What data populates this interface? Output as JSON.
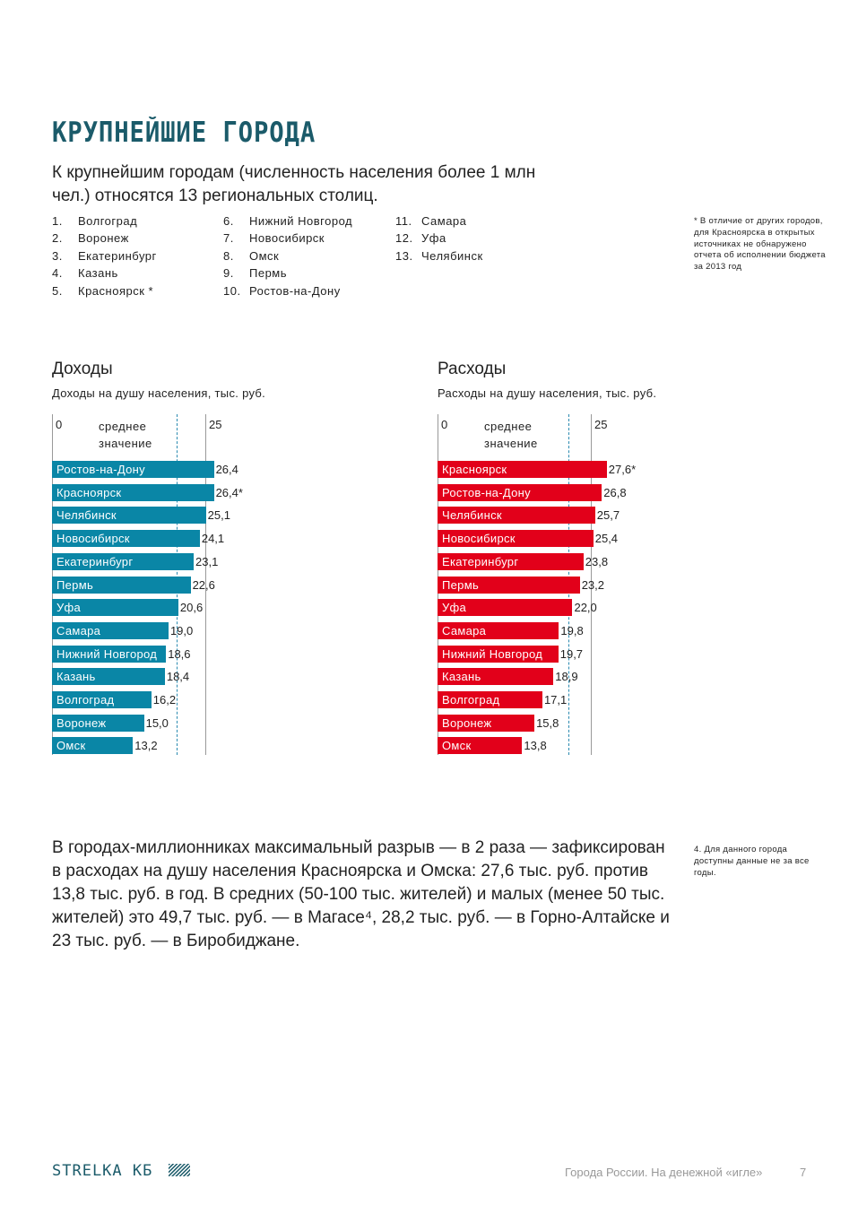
{
  "title": "КРУПНЕЙШИЕ ГОРОДА",
  "intro": "К крупнейшим городам (численность населения более 1 млн чел.) относятся 13 региональных столиц.",
  "cities": [
    {
      "n": "1.",
      "name": "Волгоград"
    },
    {
      "n": "2.",
      "name": "Воронеж"
    },
    {
      "n": "3.",
      "name": "Екатеринбург"
    },
    {
      "n": "4.",
      "name": "Казань"
    },
    {
      "n": "5.",
      "name": "Красноярск *"
    },
    {
      "n": "6.",
      "name": "Нижний  Новгород"
    },
    {
      "n": "7.",
      "name": "Новосибирск"
    },
    {
      "n": "8.",
      "name": "Омск"
    },
    {
      "n": "9.",
      "name": "Пермь"
    },
    {
      "n": "10.",
      "name": "Ростов-на-Дону"
    },
    {
      "n": "11.",
      "name": "Самара"
    },
    {
      "n": "12.",
      "name": "Уфа"
    },
    {
      "n": "13.",
      "name": "Челябинск"
    }
  ],
  "note_star": "*     В отличие от других городов, для Красноярска в открытых источниках не обнаружено отчета об исполнении бюджета за 2013 год",
  "note_4": "4.     Для данного города доступны данные не за все годы.",
  "paragraph": "В городах-миллионниках максимальный разрыв — в 2 раза — зафиксирован в расходах на душу населения Красноярска и Омска: 27,6 тыс. руб. против 13,8 тыс. руб. в год. В средних (50-100 тыс. жителей) и малых (менее 50 тыс. жителей) это 49,7 тыс. руб. — в Магасе⁴, 28,2 тыс. руб. — в Горно-Алтайске и 23 тыс. руб. — в Биробиджане.",
  "footer": {
    "logo": "STRELKA КБ",
    "text": "Города России. На денежной «игле»",
    "page": "7"
  },
  "chart_data": [
    {
      "type": "bar",
      "orientation": "horizontal",
      "title": "Доходы",
      "subtitle": "Доходы на душу населения, тыс. руб.",
      "tick_labels": [
        "0",
        "25"
      ],
      "avg_label": "среднее значение",
      "avg_value": 20.3,
      "xlim": [
        0,
        28
      ],
      "color": "#0a86a6",
      "categories": [
        "Ростов-на-Дону",
        "Красноярск",
        "Челябинск",
        "Новосибирск",
        "Екатеринбург",
        "Пермь",
        "Уфа",
        "Самара",
        "Нижний Новгород",
        "Казань",
        "Волгоград",
        "Воронеж",
        "Омск"
      ],
      "values": [
        26.4,
        26.4,
        25.1,
        24.1,
        23.1,
        22.6,
        20.6,
        19.0,
        18.6,
        18.4,
        16.2,
        15.0,
        13.2
      ],
      "labels": [
        "26,4",
        "26,4*",
        "25,1",
        "24,1",
        "23,1",
        "22,6",
        "20,6",
        "19,0",
        "18,6",
        "18,4",
        "16,2",
        "15,0",
        "13,2"
      ]
    },
    {
      "type": "bar",
      "orientation": "horizontal",
      "title": "Расходы",
      "subtitle": "Расходы на душу населения, тыс. руб.",
      "tick_labels": [
        "0",
        "25"
      ],
      "avg_label": "среднее значение",
      "avg_value": 21.3,
      "xlim": [
        0,
        28
      ],
      "color": "#e2001a",
      "categories": [
        "Красноярск",
        "Ростов-на-Дону",
        "Челябинск",
        "Новосибирск",
        "Екатеринбург",
        "Пермь",
        "Уфа",
        "Самара",
        "Нижний Новгород",
        "Казань",
        "Волгоград",
        "Воронеж",
        "Омск"
      ],
      "values": [
        27.6,
        26.8,
        25.7,
        25.4,
        23.8,
        23.2,
        22.0,
        19.8,
        19.7,
        18.9,
        17.1,
        15.8,
        13.8
      ],
      "labels": [
        "27,6*",
        "26,8",
        "25,7",
        "25,4",
        "23,8",
        "23,2",
        "22,0",
        "19,8",
        "19,7",
        "18,9",
        "17,1",
        "15,8",
        "13,8"
      ]
    }
  ]
}
